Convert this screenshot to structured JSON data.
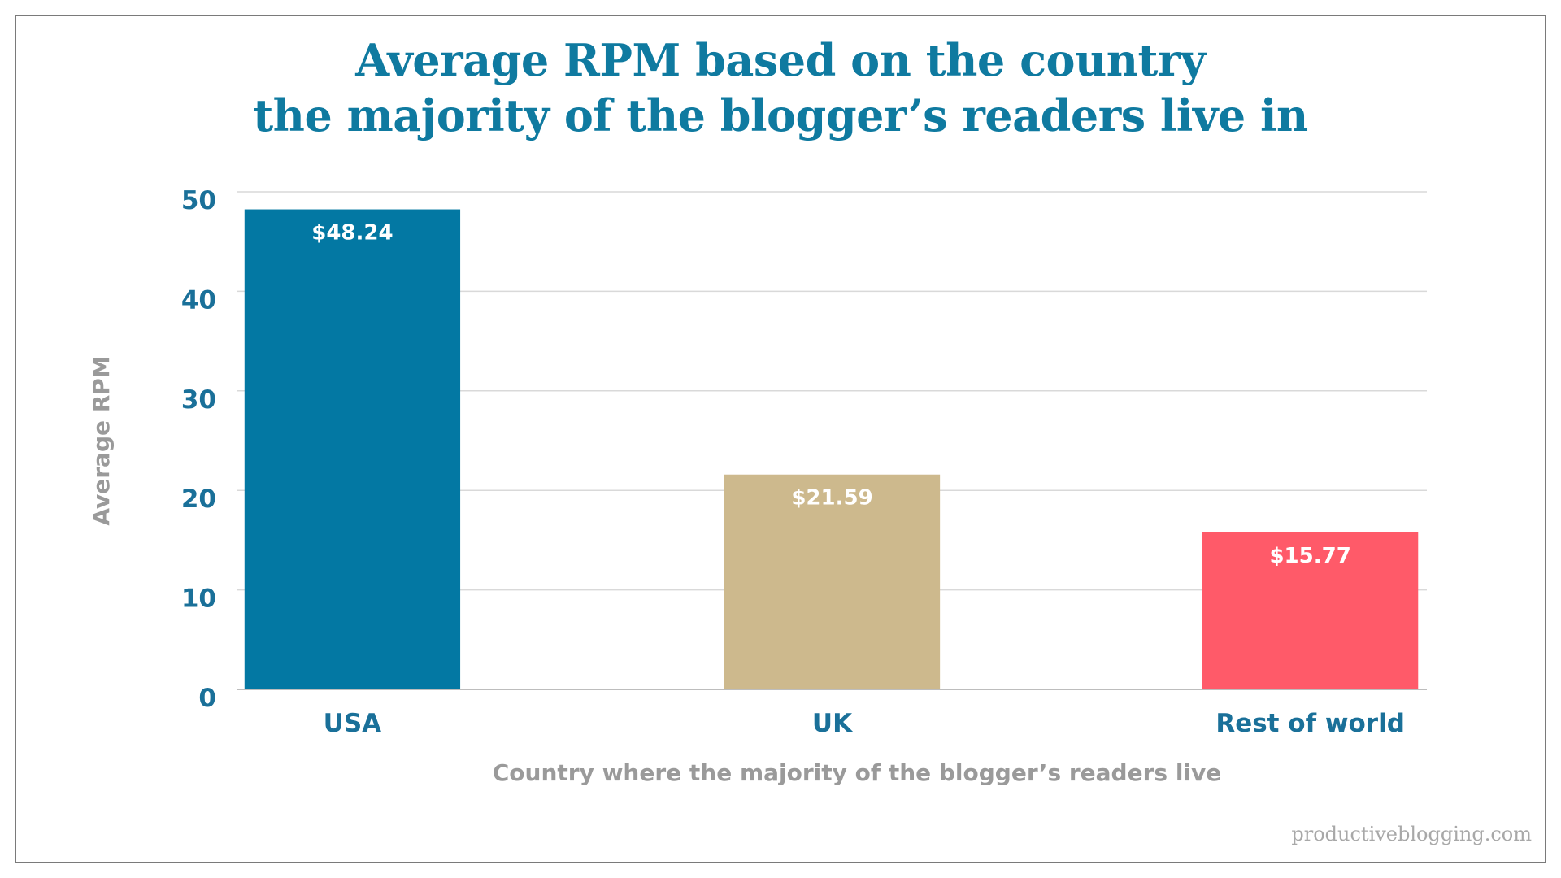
{
  "chart_data": {
    "type": "bar",
    "title_line1": "Average RPM based on the country",
    "title_line2": "the majority of the blogger’s readers live in",
    "xlabel": "Country where the majority of the blogger’s readers live",
    "ylabel": "Average RPM",
    "categories": [
      "USA",
      "UK",
      "Rest of world"
    ],
    "values": [
      48.24,
      21.59,
      15.77
    ],
    "data_labels": [
      "$48.24",
      "$21.59",
      "$15.77"
    ],
    "colors": [
      "#0378a3",
      "#cdb98d",
      "#ff5a69"
    ],
    "ylim": [
      0,
      50
    ],
    "yticks": [
      0,
      10,
      20,
      30,
      40,
      50
    ],
    "grid": true,
    "legend": "none"
  },
  "colors": {
    "title": "#0f7aa0",
    "tick_labels": "#1a7099",
    "axis_titles": "#9a9a9a",
    "gridline": "#d9d9d9"
  },
  "watermark": "productiveblogging.com"
}
